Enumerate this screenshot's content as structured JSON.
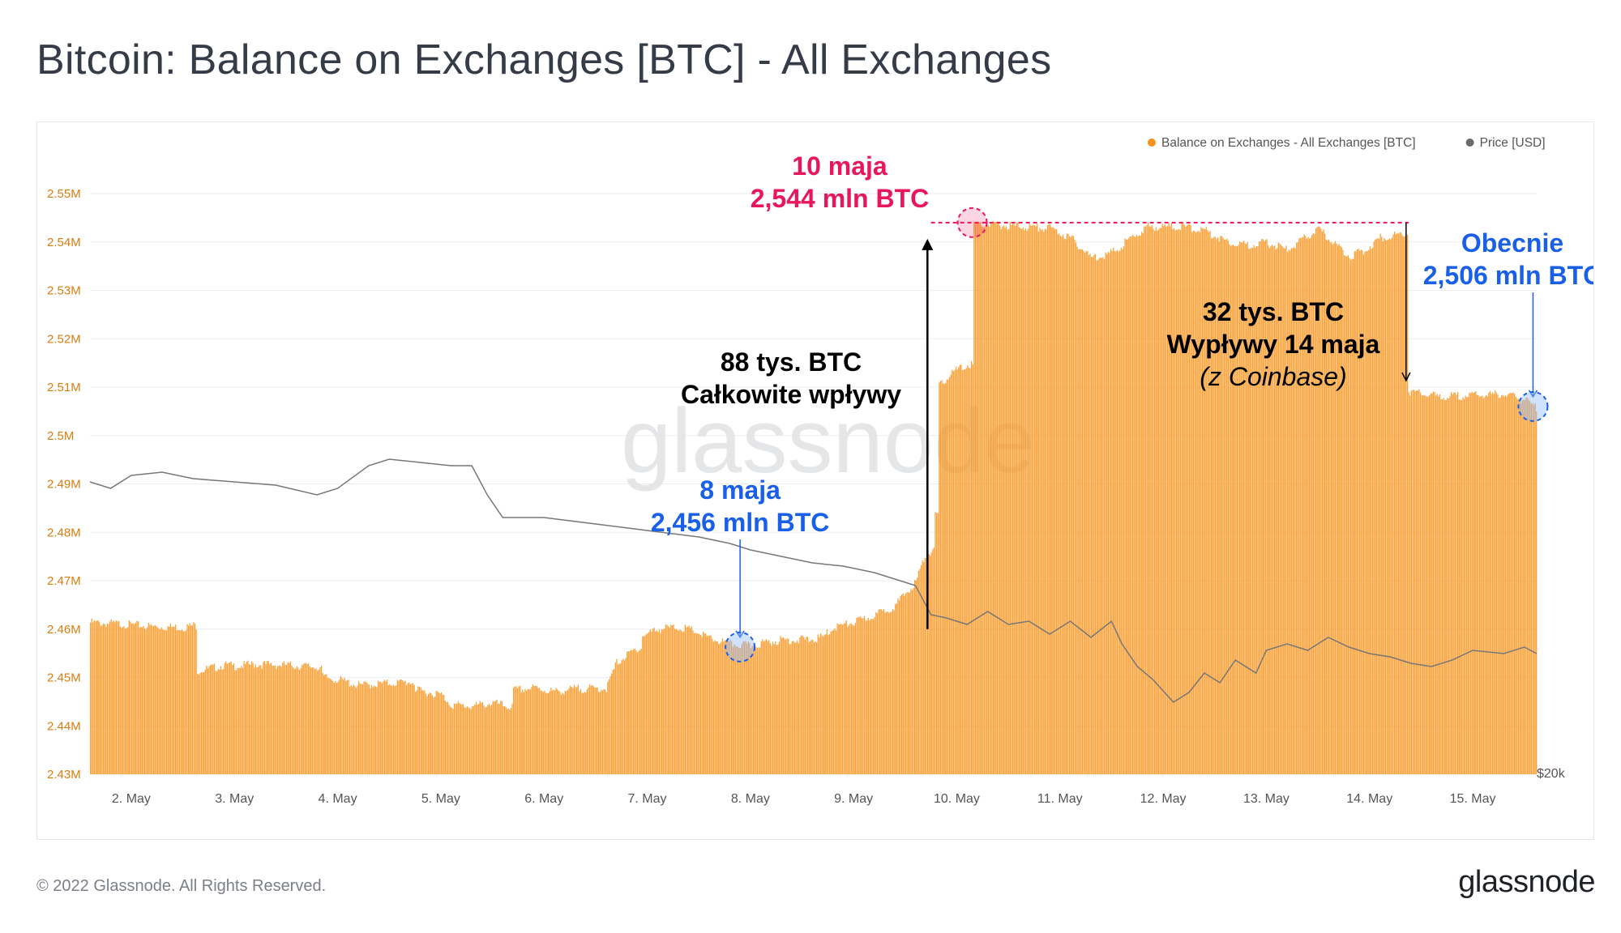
{
  "title": "Bitcoin: Balance on Exchanges [BTC] - All Exchanges",
  "watermark": "glassnode",
  "footer": {
    "copyright": "© 2022 Glassnode. All Rights Reserved.",
    "logo": "glassnode"
  },
  "colors": {
    "balance": "#f7931a",
    "price": "#6b6b6b",
    "red": "#e8175d",
    "blue": "#1a5fe8",
    "axis_text": "#d97d10"
  },
  "chart_data": {
    "type": "bar",
    "legend": [
      {
        "label": "Balance on Exchanges - All Exchanges [BTC]",
        "color": "#f7931a"
      },
      {
        "label": "Price [USD]",
        "color": "#6b6b6b"
      }
    ],
    "legend_position": "top-right",
    "y_ticks": [
      "2.43M",
      "2.44M",
      "2.45M",
      "2.46M",
      "2.47M",
      "2.48M",
      "2.49M",
      "2.5M",
      "2.51M",
      "2.52M",
      "2.53M",
      "2.54M",
      "2.55M"
    ],
    "ylim": [
      2430000,
      2550000
    ],
    "y2_label": "$20k",
    "x_ticks": [
      "2. May",
      "3. May",
      "4. May",
      "5. May",
      "6. May",
      "7. May",
      "8. May",
      "9. May",
      "10. May",
      "11. May",
      "12. May",
      "13. May",
      "14. May",
      "15. May"
    ],
    "xlim": [
      1.6,
      15.62
    ],
    "balance_series": [
      [
        1.6,
        2461800
      ],
      [
        1.9,
        2461500
      ],
      [
        2.2,
        2461000
      ],
      [
        2.5,
        2460800
      ],
      [
        2.6,
        2461200
      ],
      [
        2.63,
        2451800
      ],
      [
        2.8,
        2452500
      ],
      [
        2.9,
        2453000
      ],
      [
        3.0,
        2452800
      ],
      [
        3.2,
        2453200
      ],
      [
        3.5,
        2453000
      ],
      [
        3.8,
        2452600
      ],
      [
        3.85,
        2450500
      ],
      [
        4.0,
        2450000
      ],
      [
        4.2,
        2448800
      ],
      [
        4.5,
        2449300
      ],
      [
        4.7,
        2449500
      ],
      [
        4.75,
        2447800
      ],
      [
        4.9,
        2447300
      ],
      [
        5.0,
        2446900
      ],
      [
        5.1,
        2444800
      ],
      [
        5.3,
        2444500
      ],
      [
        5.5,
        2445200
      ],
      [
        5.65,
        2444400
      ],
      [
        5.7,
        2447800
      ],
      [
        5.9,
        2448300
      ],
      [
        6.1,
        2447500
      ],
      [
        6.3,
        2448100
      ],
      [
        6.6,
        2448200
      ],
      [
        6.7,
        2453500
      ],
      [
        6.9,
        2456500
      ],
      [
        6.95,
        2459000
      ],
      [
        7.1,
        2460500
      ],
      [
        7.3,
        2460800
      ],
      [
        7.45,
        2460100
      ],
      [
        7.6,
        2458500
      ],
      [
        7.8,
        2457400
      ],
      [
        8.0,
        2457000
      ],
      [
        8.1,
        2457500
      ],
      [
        8.3,
        2458200
      ],
      [
        8.6,
        2458300
      ],
      [
        8.7,
        2458800
      ],
      [
        8.8,
        2460800
      ],
      [
        9.0,
        2461800
      ],
      [
        9.2,
        2463300
      ],
      [
        9.4,
        2465300
      ],
      [
        9.5,
        2467800
      ],
      [
        9.6,
        2470200
      ],
      [
        9.68,
        2475200
      ],
      [
        9.74,
        2476500
      ],
      [
        9.78,
        2484000
      ],
      [
        9.82,
        2510500
      ],
      [
        9.95,
        2513500
      ],
      [
        10.1,
        2515000
      ],
      [
        10.15,
        2544200
      ],
      [
        10.5,
        2543800
      ],
      [
        10.9,
        2543300
      ],
      [
        11.1,
        2541300
      ],
      [
        11.3,
        2537200
      ],
      [
        11.5,
        2538200
      ],
      [
        11.7,
        2541500
      ],
      [
        11.85,
        2543600
      ],
      [
        12.2,
        2543600
      ],
      [
        12.4,
        2542800
      ],
      [
        12.6,
        2540700
      ],
      [
        12.8,
        2539800
      ],
      [
        13.0,
        2540300
      ],
      [
        13.2,
        2538800
      ],
      [
        13.5,
        2543100
      ],
      [
        13.8,
        2537500
      ],
      [
        13.95,
        2538700
      ],
      [
        14.1,
        2541300
      ],
      [
        14.32,
        2542200
      ],
      [
        14.37,
        2509600
      ],
      [
        14.7,
        2508400
      ],
      [
        15.0,
        2508800
      ],
      [
        15.3,
        2509000
      ],
      [
        15.5,
        2507800
      ],
      [
        15.62,
        2506000
      ]
    ],
    "price_series_relative": [
      [
        1.6,
        0.74
      ],
      [
        1.8,
        0.72
      ],
      [
        2.0,
        0.76
      ],
      [
        2.3,
        0.77
      ],
      [
        2.6,
        0.75
      ],
      [
        3.0,
        0.74
      ],
      [
        3.4,
        0.73
      ],
      [
        3.8,
        0.7
      ],
      [
        4.0,
        0.72
      ],
      [
        4.3,
        0.79
      ],
      [
        4.5,
        0.81
      ],
      [
        4.8,
        0.8
      ],
      [
        5.1,
        0.79
      ],
      [
        5.3,
        0.79
      ],
      [
        5.45,
        0.7
      ],
      [
        5.6,
        0.63
      ],
      [
        6.0,
        0.63
      ],
      [
        6.5,
        0.61
      ],
      [
        7.0,
        0.59
      ],
      [
        7.5,
        0.57
      ],
      [
        7.8,
        0.55
      ],
      [
        8.0,
        0.53
      ],
      [
        8.3,
        0.51
      ],
      [
        8.6,
        0.49
      ],
      [
        8.9,
        0.48
      ],
      [
        9.2,
        0.46
      ],
      [
        9.4,
        0.44
      ],
      [
        9.6,
        0.42
      ],
      [
        9.75,
        0.33
      ],
      [
        9.9,
        0.32
      ],
      [
        10.1,
        0.3
      ],
      [
        10.3,
        0.34
      ],
      [
        10.5,
        0.3
      ],
      [
        10.7,
        0.31
      ],
      [
        10.9,
        0.27
      ],
      [
        11.1,
        0.31
      ],
      [
        11.3,
        0.26
      ],
      [
        11.5,
        0.31
      ],
      [
        11.6,
        0.24
      ],
      [
        11.75,
        0.17
      ],
      [
        11.9,
        0.13
      ],
      [
        12.1,
        0.06
      ],
      [
        12.25,
        0.09
      ],
      [
        12.4,
        0.15
      ],
      [
        12.55,
        0.12
      ],
      [
        12.7,
        0.19
      ],
      [
        12.9,
        0.15
      ],
      [
        13.0,
        0.22
      ],
      [
        13.2,
        0.24
      ],
      [
        13.4,
        0.22
      ],
      [
        13.6,
        0.26
      ],
      [
        13.8,
        0.23
      ],
      [
        14.0,
        0.21
      ],
      [
        14.2,
        0.2
      ],
      [
        14.4,
        0.18
      ],
      [
        14.6,
        0.17
      ],
      [
        14.8,
        0.19
      ],
      [
        15.0,
        0.22
      ],
      [
        15.3,
        0.21
      ],
      [
        15.5,
        0.23
      ],
      [
        15.62,
        0.21
      ]
    ],
    "annotations": [
      {
        "id": "peak",
        "lines": [
          "10 maja",
          "2,544 mln BTC"
        ],
        "x": 10.15,
        "y": 2544000,
        "color": "#e8175d"
      },
      {
        "id": "low",
        "lines": [
          "8 maja",
          "2,456 mln BTC"
        ],
        "x": 7.9,
        "y": 2456300,
        "color": "#1a5fe8"
      },
      {
        "id": "current",
        "lines": [
          "Obecnie",
          "2,506 mln BTC"
        ],
        "x": 15.6,
        "y": 2506000,
        "color": "#1a5fe8"
      },
      {
        "id": "inflow",
        "lines": [
          "88 tys. BTC",
          "Całkowite wpływy"
        ],
        "from": 2460000,
        "to": 2544000,
        "x": 9.7,
        "color": "#000000"
      },
      {
        "id": "outflow",
        "lines": [
          "32 tys. BTC",
          "Wypływy 14 maja",
          "(z Coinbase)"
        ],
        "from": 2544000,
        "to": 2510000,
        "x": 14.37,
        "color": "#000000"
      }
    ]
  }
}
